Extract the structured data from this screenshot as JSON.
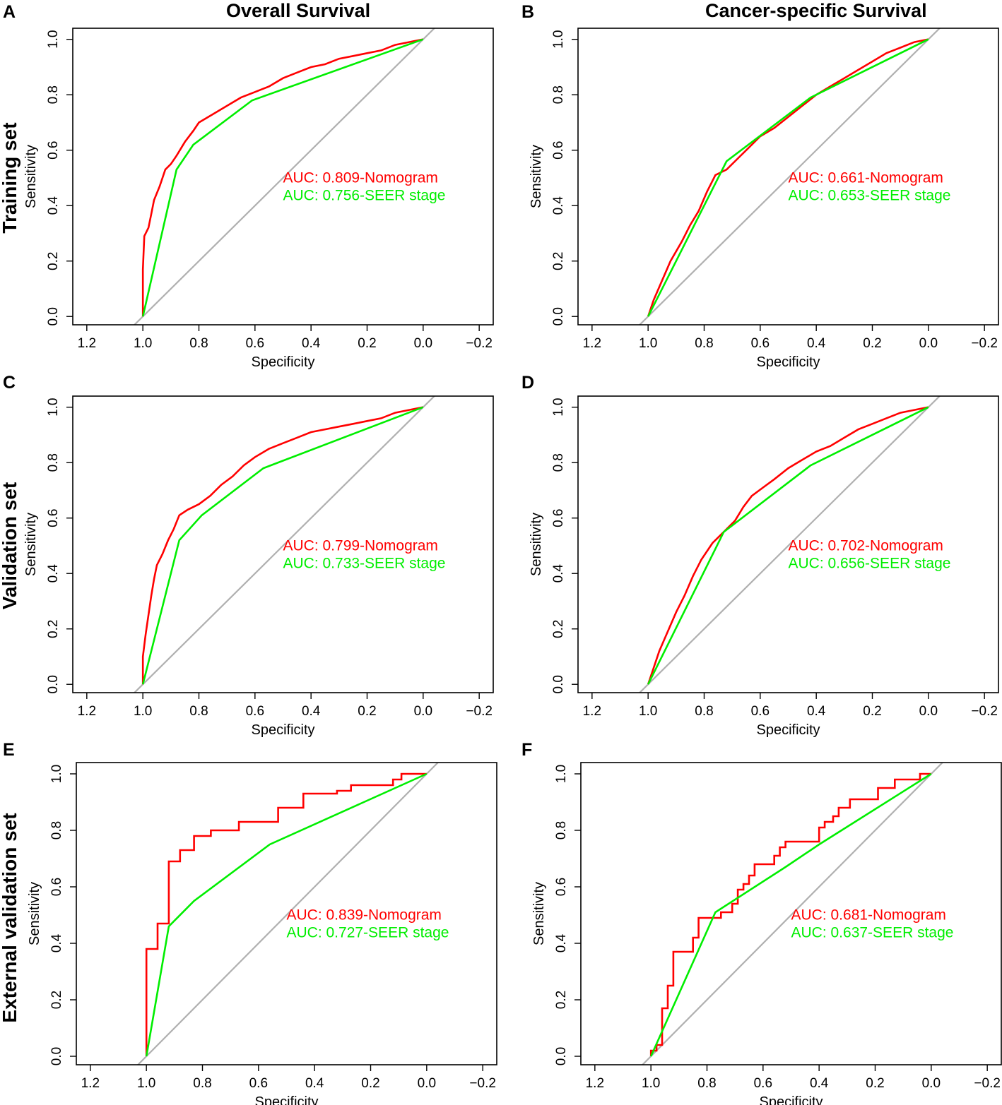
{
  "column_headers": [
    "Overall Survival",
    "Cancer-specific Survival"
  ],
  "row_labels": [
    "Training set",
    "Validation set",
    "External validation set"
  ],
  "colors": {
    "nomogram": "#ff0000",
    "seer": "#00ee00",
    "reference": "#b0b0b0",
    "axis": "#000000"
  },
  "chart_data": [
    {
      "panel": "A",
      "type": "line",
      "xlabel": "Specificity",
      "ylabel": "Sensitivity",
      "xlim": [
        1.25,
        -0.25
      ],
      "ylim": [
        -0.03,
        1.04
      ],
      "x_ticks": [
        "1.2",
        "1.0",
        "0.8",
        "0.6",
        "0.4",
        "0.2",
        "0.0",
        "−0.2"
      ],
      "y_ticks": [
        "0.0",
        "0.2",
        "0.4",
        "0.6",
        "0.8",
        "1.0"
      ],
      "series": [
        {
          "name": "Nomogram",
          "label": "AUC: 0.809-Nomogram",
          "points": [
            [
              1.0,
              0.0
            ],
            [
              1.0,
              0.17
            ],
            [
              0.995,
              0.29
            ],
            [
              0.98,
              0.32
            ],
            [
              0.97,
              0.37
            ],
            [
              0.96,
              0.42
            ],
            [
              0.94,
              0.47
            ],
            [
              0.92,
              0.53
            ],
            [
              0.9,
              0.55
            ],
            [
              0.88,
              0.58
            ],
            [
              0.85,
              0.63
            ],
            [
              0.82,
              0.67
            ],
            [
              0.8,
              0.7
            ],
            [
              0.75,
              0.73
            ],
            [
              0.7,
              0.76
            ],
            [
              0.65,
              0.79
            ],
            [
              0.6,
              0.81
            ],
            [
              0.55,
              0.83
            ],
            [
              0.5,
              0.86
            ],
            [
              0.45,
              0.88
            ],
            [
              0.4,
              0.9
            ],
            [
              0.35,
              0.91
            ],
            [
              0.3,
              0.93
            ],
            [
              0.25,
              0.94
            ],
            [
              0.2,
              0.95
            ],
            [
              0.15,
              0.96
            ],
            [
              0.1,
              0.98
            ],
            [
              0.05,
              0.99
            ],
            [
              0.0,
              1.0
            ]
          ]
        },
        {
          "name": "SEER stage",
          "label": "AUC: 0.756-SEER stage",
          "points": [
            [
              1.0,
              0.0
            ],
            [
              0.88,
              0.53
            ],
            [
              0.82,
              0.62
            ],
            [
              0.61,
              0.78
            ],
            [
              0.0,
              1.0
            ]
          ]
        }
      ]
    },
    {
      "panel": "B",
      "type": "line",
      "xlabel": "Specificity",
      "ylabel": "Sensitivity",
      "xlim": [
        1.25,
        -0.25
      ],
      "ylim": [
        -0.03,
        1.04
      ],
      "x_ticks": [
        "1.2",
        "1.0",
        "0.8",
        "0.6",
        "0.4",
        "0.2",
        "0.0",
        "−0.2"
      ],
      "y_ticks": [
        "0.0",
        "0.2",
        "0.4",
        "0.6",
        "0.8",
        "1.0"
      ],
      "series": [
        {
          "name": "Nomogram",
          "label": "AUC: 0.661-Nomogram",
          "points": [
            [
              1.0,
              0.0
            ],
            [
              0.98,
              0.06
            ],
            [
              0.95,
              0.13
            ],
            [
              0.92,
              0.2
            ],
            [
              0.88,
              0.27
            ],
            [
              0.85,
              0.33
            ],
            [
              0.82,
              0.38
            ],
            [
              0.79,
              0.45
            ],
            [
              0.76,
              0.51
            ],
            [
              0.72,
              0.53
            ],
            [
              0.68,
              0.57
            ],
            [
              0.64,
              0.61
            ],
            [
              0.6,
              0.65
            ],
            [
              0.55,
              0.68
            ],
            [
              0.5,
              0.72
            ],
            [
              0.45,
              0.76
            ],
            [
              0.4,
              0.8
            ],
            [
              0.35,
              0.83
            ],
            [
              0.3,
              0.86
            ],
            [
              0.25,
              0.89
            ],
            [
              0.2,
              0.92
            ],
            [
              0.15,
              0.95
            ],
            [
              0.1,
              0.97
            ],
            [
              0.05,
              0.99
            ],
            [
              0.0,
              1.0
            ]
          ]
        },
        {
          "name": "SEER stage",
          "label": "AUC: 0.653-SEER stage",
          "points": [
            [
              1.0,
              0.0
            ],
            [
              0.72,
              0.56
            ],
            [
              0.42,
              0.79
            ],
            [
              0.0,
              1.0
            ]
          ]
        }
      ]
    },
    {
      "panel": "C",
      "type": "line",
      "xlabel": "Specificity",
      "ylabel": "Sensitivity",
      "xlim": [
        1.25,
        -0.25
      ],
      "ylim": [
        -0.03,
        1.04
      ],
      "x_ticks": [
        "1.2",
        "1.0",
        "0.8",
        "0.6",
        "0.4",
        "0.2",
        "0.0",
        "−0.2"
      ],
      "y_ticks": [
        "0.0",
        "0.2",
        "0.4",
        "0.6",
        "0.8",
        "1.0"
      ],
      "series": [
        {
          "name": "Nomogram",
          "label": "AUC: 0.799-Nomogram",
          "points": [
            [
              1.0,
              0.0
            ],
            [
              1.0,
              0.1
            ],
            [
              0.99,
              0.18
            ],
            [
              0.98,
              0.25
            ],
            [
              0.97,
              0.32
            ],
            [
              0.96,
              0.38
            ],
            [
              0.95,
              0.43
            ],
            [
              0.93,
              0.47
            ],
            [
              0.91,
              0.52
            ],
            [
              0.89,
              0.56
            ],
            [
              0.87,
              0.61
            ],
            [
              0.84,
              0.63
            ],
            [
              0.8,
              0.65
            ],
            [
              0.76,
              0.68
            ],
            [
              0.72,
              0.72
            ],
            [
              0.68,
              0.75
            ],
            [
              0.64,
              0.79
            ],
            [
              0.6,
              0.82
            ],
            [
              0.55,
              0.85
            ],
            [
              0.5,
              0.87
            ],
            [
              0.45,
              0.89
            ],
            [
              0.4,
              0.91
            ],
            [
              0.35,
              0.92
            ],
            [
              0.3,
              0.93
            ],
            [
              0.25,
              0.94
            ],
            [
              0.2,
              0.95
            ],
            [
              0.15,
              0.96
            ],
            [
              0.1,
              0.98
            ],
            [
              0.05,
              0.99
            ],
            [
              0.0,
              1.0
            ]
          ]
        },
        {
          "name": "SEER stage",
          "label": "AUC: 0.733-SEER stage",
          "points": [
            [
              1.0,
              0.0
            ],
            [
              0.87,
              0.52
            ],
            [
              0.79,
              0.61
            ],
            [
              0.57,
              0.78
            ],
            [
              0.0,
              1.0
            ]
          ]
        }
      ]
    },
    {
      "panel": "D",
      "type": "line",
      "xlabel": "Specificity",
      "ylabel": "Sensitivity",
      "xlim": [
        1.25,
        -0.25
      ],
      "ylim": [
        -0.03,
        1.04
      ],
      "x_ticks": [
        "1.2",
        "1.0",
        "0.8",
        "0.6",
        "0.4",
        "0.2",
        "0.0",
        "−0.2"
      ],
      "y_ticks": [
        "0.0",
        "0.2",
        "0.4",
        "0.6",
        "0.8",
        "1.0"
      ],
      "series": [
        {
          "name": "Nomogram",
          "label": "AUC: 0.702-Nomogram",
          "points": [
            [
              1.0,
              0.0
            ],
            [
              0.98,
              0.06
            ],
            [
              0.96,
              0.12
            ],
            [
              0.93,
              0.19
            ],
            [
              0.9,
              0.26
            ],
            [
              0.87,
              0.32
            ],
            [
              0.84,
              0.39
            ],
            [
              0.81,
              0.45
            ],
            [
              0.77,
              0.51
            ],
            [
              0.73,
              0.55
            ],
            [
              0.69,
              0.59
            ],
            [
              0.66,
              0.64
            ],
            [
              0.63,
              0.68
            ],
            [
              0.59,
              0.71
            ],
            [
              0.55,
              0.74
            ],
            [
              0.5,
              0.78
            ],
            [
              0.45,
              0.81
            ],
            [
              0.4,
              0.84
            ],
            [
              0.35,
              0.86
            ],
            [
              0.3,
              0.89
            ],
            [
              0.25,
              0.92
            ],
            [
              0.2,
              0.94
            ],
            [
              0.15,
              0.96
            ],
            [
              0.1,
              0.98
            ],
            [
              0.05,
              0.99
            ],
            [
              0.0,
              1.0
            ]
          ]
        },
        {
          "name": "SEER stage",
          "label": "AUC: 0.656-SEER stage",
          "points": [
            [
              1.0,
              0.0
            ],
            [
              0.73,
              0.55
            ],
            [
              0.42,
              0.79
            ],
            [
              0.0,
              1.0
            ]
          ]
        }
      ]
    },
    {
      "panel": "E",
      "type": "line",
      "xlabel": "Specificity",
      "ylabel": "Sensitivity",
      "xlim": [
        1.25,
        -0.25
      ],
      "ylim": [
        -0.03,
        1.04
      ],
      "x_ticks": [
        "1.2",
        "1.0",
        "0.8",
        "0.6",
        "0.4",
        "0.2",
        "0.0",
        "−0.2"
      ],
      "y_ticks": [
        "0.0",
        "0.2",
        "0.4",
        "0.6",
        "0.8",
        "1.0"
      ],
      "series": [
        {
          "name": "Nomogram",
          "label": "AUC: 0.839-Nomogram",
          "points": [
            [
              1.0,
              0.0
            ],
            [
              1.0,
              0.38
            ],
            [
              0.96,
              0.38
            ],
            [
              0.96,
              0.47
            ],
            [
              0.92,
              0.47
            ],
            [
              0.92,
              0.69
            ],
            [
              0.88,
              0.69
            ],
            [
              0.88,
              0.73
            ],
            [
              0.83,
              0.73
            ],
            [
              0.83,
              0.78
            ],
            [
              0.77,
              0.78
            ],
            [
              0.77,
              0.8
            ],
            [
              0.67,
              0.8
            ],
            [
              0.67,
              0.83
            ],
            [
              0.53,
              0.83
            ],
            [
              0.53,
              0.88
            ],
            [
              0.44,
              0.88
            ],
            [
              0.44,
              0.93
            ],
            [
              0.32,
              0.93
            ],
            [
              0.32,
              0.94
            ],
            [
              0.27,
              0.94
            ],
            [
              0.27,
              0.96
            ],
            [
              0.12,
              0.96
            ],
            [
              0.12,
              0.98
            ],
            [
              0.09,
              0.98
            ],
            [
              0.09,
              1.0
            ],
            [
              0.0,
              1.0
            ]
          ]
        },
        {
          "name": "SEER stage",
          "label": "AUC: 0.727-SEER stage",
          "points": [
            [
              1.0,
              0.0
            ],
            [
              0.92,
              0.46
            ],
            [
              0.83,
              0.55
            ],
            [
              0.56,
              0.75
            ],
            [
              0.0,
              1.0
            ]
          ]
        }
      ]
    },
    {
      "panel": "F",
      "type": "line",
      "xlabel": "Specificity",
      "ylabel": "Sensitivity",
      "xlim": [
        1.25,
        -0.25
      ],
      "ylim": [
        -0.03,
        1.04
      ],
      "x_ticks": [
        "1.2",
        "1.0",
        "0.8",
        "0.6",
        "0.4",
        "0.2",
        "0.0",
        "−0.2"
      ],
      "y_ticks": [
        "0.0",
        "0.2",
        "0.4",
        "0.6",
        "0.8",
        "1.0"
      ],
      "series": [
        {
          "name": "Nomogram",
          "label": "AUC: 0.681-Nomogram",
          "points": [
            [
              1.0,
              0.0
            ],
            [
              1.0,
              0.02
            ],
            [
              0.98,
              0.02
            ],
            [
              0.98,
              0.04
            ],
            [
              0.96,
              0.04
            ],
            [
              0.96,
              0.17
            ],
            [
              0.94,
              0.17
            ],
            [
              0.94,
              0.25
            ],
            [
              0.92,
              0.25
            ],
            [
              0.92,
              0.37
            ],
            [
              0.85,
              0.37
            ],
            [
              0.85,
              0.42
            ],
            [
              0.83,
              0.42
            ],
            [
              0.83,
              0.49
            ],
            [
              0.75,
              0.49
            ],
            [
              0.75,
              0.51
            ],
            [
              0.71,
              0.51
            ],
            [
              0.71,
              0.54
            ],
            [
              0.69,
              0.54
            ],
            [
              0.69,
              0.59
            ],
            [
              0.67,
              0.59
            ],
            [
              0.67,
              0.61
            ],
            [
              0.65,
              0.61
            ],
            [
              0.65,
              0.64
            ],
            [
              0.63,
              0.64
            ],
            [
              0.63,
              0.68
            ],
            [
              0.56,
              0.68
            ],
            [
              0.56,
              0.71
            ],
            [
              0.54,
              0.71
            ],
            [
              0.54,
              0.74
            ],
            [
              0.52,
              0.74
            ],
            [
              0.52,
              0.76
            ],
            [
              0.4,
              0.76
            ],
            [
              0.4,
              0.81
            ],
            [
              0.38,
              0.81
            ],
            [
              0.38,
              0.83
            ],
            [
              0.35,
              0.83
            ],
            [
              0.35,
              0.85
            ],
            [
              0.33,
              0.85
            ],
            [
              0.33,
              0.88
            ],
            [
              0.29,
              0.88
            ],
            [
              0.29,
              0.91
            ],
            [
              0.19,
              0.91
            ],
            [
              0.19,
              0.95
            ],
            [
              0.13,
              0.95
            ],
            [
              0.13,
              0.98
            ],
            [
              0.04,
              0.98
            ],
            [
              0.04,
              1.0
            ],
            [
              0.0,
              1.0
            ]
          ]
        },
        {
          "name": "SEER stage",
          "label": "AUC: 0.637-SEER stage",
          "points": [
            [
              1.0,
              0.0
            ],
            [
              0.77,
              0.51
            ],
            [
              0.52,
              0.67
            ],
            [
              0.4,
              0.75
            ],
            [
              0.0,
              1.0
            ]
          ]
        }
      ]
    }
  ]
}
